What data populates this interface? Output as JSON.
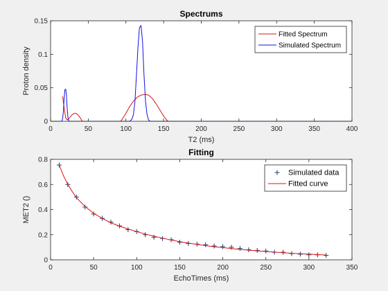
{
  "chart_data": [
    {
      "type": "line",
      "title": "Spectrums",
      "xlabel": "T2 (ms)",
      "ylabel": "Proton density",
      "xlim": [
        0,
        400
      ],
      "ylim": [
        0,
        0.15
      ],
      "xticks": [
        0,
        50,
        100,
        150,
        200,
        250,
        300,
        350,
        400
      ],
      "yticks": [
        0,
        0.05,
        0.1,
        0.15
      ],
      "ytick_labels": [
        "0",
        "0.05",
        "0.1",
        "0.15"
      ],
      "grid": false,
      "legend_position": "top-right",
      "series": [
        {
          "name": "Fitted Spectrum",
          "color": "#e01010",
          "x": [
            16,
            18,
            20,
            22,
            25,
            28,
            30,
            33,
            36,
            40,
            42,
            93,
            95,
            100,
            105,
            110,
            115,
            120,
            125,
            130,
            135,
            140,
            145,
            150,
            154,
            156
          ],
          "y": [
            0.037,
            0.02,
            0.005,
            0.002,
            0.005,
            0.009,
            0.011,
            0.012,
            0.01,
            0.004,
            0.0,
            0.0,
            0.003,
            0.012,
            0.022,
            0.03,
            0.036,
            0.039,
            0.04,
            0.039,
            0.034,
            0.026,
            0.017,
            0.008,
            0.002,
            0.0
          ]
        },
        {
          "name": "Simulated Spectrum",
          "color": "#1010e0",
          "x": [
            0,
            15,
            16,
            17,
            18,
            19,
            20,
            21,
            22,
            23,
            24,
            25,
            26,
            105,
            108,
            110,
            112,
            114,
            116,
            118,
            120,
            122,
            124,
            126,
            128,
            130,
            132,
            134,
            400
          ],
          "y": [
            0,
            0,
            0.004,
            0.015,
            0.035,
            0.047,
            0.048,
            0.04,
            0.02,
            0.006,
            0.001,
            0,
            0,
            0,
            0.003,
            0.01,
            0.03,
            0.07,
            0.11,
            0.14,
            0.143,
            0.12,
            0.07,
            0.03,
            0.01,
            0.002,
            0,
            0,
            0
          ]
        }
      ]
    },
    {
      "type": "scatter",
      "title": "Fitting",
      "xlabel": "EchoTimes (ms)",
      "ylabel": "MET2 ()",
      "xlim": [
        0,
        350
      ],
      "ylim": [
        0,
        0.8
      ],
      "xticks": [
        0,
        50,
        100,
        150,
        200,
        250,
        300,
        350
      ],
      "yticks": [
        0,
        0.2,
        0.4,
        0.6,
        0.8
      ],
      "ytick_labels": [
        "0",
        "0.2",
        "0.4",
        "0.6",
        "0.8"
      ],
      "grid": false,
      "legend_position": "top-right",
      "series": [
        {
          "name": "Simulated data",
          "color": "#1a3a6a",
          "marker": "+",
          "x": [
            10,
            20,
            30,
            40,
            50,
            60,
            70,
            80,
            90,
            100,
            110,
            120,
            130,
            140,
            150,
            160,
            170,
            180,
            190,
            200,
            210,
            220,
            230,
            240,
            250,
            260,
            270,
            280,
            290,
            300,
            310,
            320
          ],
          "y": [
            0.755,
            0.6,
            0.5,
            0.42,
            0.365,
            0.33,
            0.3,
            0.27,
            0.24,
            0.225,
            0.2,
            0.18,
            0.17,
            0.16,
            0.14,
            0.13,
            0.125,
            0.12,
            0.11,
            0.105,
            0.1,
            0.09,
            0.08,
            0.075,
            0.07,
            0.06,
            0.06,
            0.05,
            0.045,
            0.04,
            0.04,
            0.035
          ]
        },
        {
          "name": "Fitted curve",
          "color": "#e01010",
          "line": true,
          "x": [
            10,
            15,
            20,
            25,
            30,
            40,
            50,
            60,
            70,
            80,
            90,
            100,
            110,
            120,
            130,
            140,
            150,
            160,
            170,
            180,
            190,
            200,
            220,
            240,
            260,
            280,
            300,
            320
          ],
          "y": [
            0.755,
            0.67,
            0.6,
            0.545,
            0.495,
            0.425,
            0.37,
            0.33,
            0.295,
            0.268,
            0.245,
            0.225,
            0.205,
            0.188,
            0.172,
            0.158,
            0.145,
            0.133,
            0.123,
            0.113,
            0.104,
            0.097,
            0.083,
            0.071,
            0.061,
            0.052,
            0.045,
            0.038
          ]
        }
      ]
    }
  ]
}
